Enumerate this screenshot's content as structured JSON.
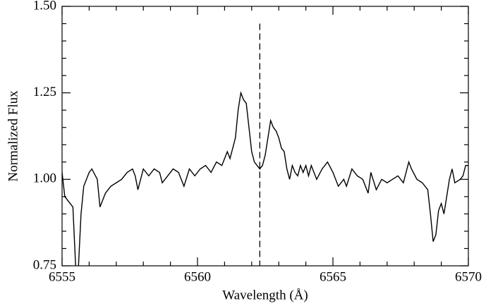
{
  "chart_data": {
    "type": "line",
    "x_label": "Wavelength (Å)",
    "y_label": "Normalized Flux",
    "xlim": [
      6555,
      6570
    ],
    "ylim": [
      0.75,
      1.5
    ],
    "xticks": [
      6555,
      6560,
      6565,
      6570
    ],
    "yticks": [
      {
        "value": 0.75,
        "label": "0.75"
      },
      {
        "value": 1.0,
        "label": "1.00"
      },
      {
        "value": 1.25,
        "label": "1.25"
      },
      {
        "value": 1.5,
        "label": "1.50"
      }
    ],
    "xminor": [
      6556,
      6557,
      6558,
      6559,
      6561,
      6562,
      6563,
      6564,
      6566,
      6567,
      6568,
      6569
    ],
    "yminor": [
      0.8,
      0.85,
      0.9,
      0.95,
      1.05,
      1.1,
      1.15,
      1.2,
      1.3,
      1.35,
      1.4,
      1.45
    ],
    "vline": {
      "x": 6562.3,
      "top": 1.45,
      "dash": true
    },
    "series": [
      {
        "color": "#000000",
        "x": [
          6555.0,
          6555.1,
          6555.3,
          6555.4,
          6555.5,
          6555.6,
          6555.7,
          6555.8,
          6556.0,
          6556.1,
          6556.3,
          6556.4,
          6556.6,
          6556.8,
          6557.0,
          6557.2,
          6557.4,
          6557.6,
          6557.7,
          6557.8,
          6558.0,
          6558.2,
          6558.4,
          6558.6,
          6558.7,
          6558.9,
          6559.1,
          6559.3,
          6559.5,
          6559.7,
          6559.9,
          6560.1,
          6560.3,
          6560.5,
          6560.7,
          6560.9,
          6561.1,
          6561.2,
          6561.4,
          6561.5,
          6561.6,
          6561.7,
          6561.8,
          6561.9,
          6562.0,
          6562.1,
          6562.3,
          6562.4,
          6562.5,
          6562.6,
          6562.7,
          6562.8,
          6562.9,
          6563.0,
          6563.1,
          6563.2,
          6563.3,
          6563.4,
          6563.5,
          6563.6,
          6563.7,
          6563.8,
          6563.9,
          6564.0,
          6564.1,
          6564.2,
          6564.4,
          6564.6,
          6564.8,
          6565.0,
          6565.2,
          6565.4,
          6565.5,
          6565.7,
          6565.9,
          6566.1,
          6566.3,
          6566.4,
          6566.6,
          6566.8,
          6567.0,
          6567.2,
          6567.4,
          6567.6,
          6567.8,
          6567.9,
          6568.1,
          6568.3,
          6568.5,
          6568.6,
          6568.7,
          6568.8,
          6568.9,
          6569.0,
          6569.1,
          6569.2,
          6569.3,
          6569.4,
          6569.5,
          6569.7,
          6569.8,
          6569.9,
          6570.0
        ],
        "values": [
          1.02,
          0.95,
          0.93,
          0.92,
          0.75,
          0.74,
          0.9,
          0.98,
          1.02,
          1.03,
          1.0,
          0.92,
          0.96,
          0.98,
          0.99,
          1.0,
          1.02,
          1.03,
          1.01,
          0.97,
          1.03,
          1.01,
          1.03,
          1.02,
          0.99,
          1.01,
          1.03,
          1.02,
          0.98,
          1.03,
          1.01,
          1.03,
          1.04,
          1.02,
          1.05,
          1.04,
          1.08,
          1.06,
          1.12,
          1.2,
          1.25,
          1.23,
          1.22,
          1.15,
          1.08,
          1.05,
          1.03,
          1.04,
          1.07,
          1.12,
          1.17,
          1.15,
          1.14,
          1.12,
          1.09,
          1.08,
          1.03,
          1.0,
          1.04,
          1.02,
          1.01,
          1.04,
          1.02,
          1.04,
          1.01,
          1.04,
          1.0,
          1.03,
          1.05,
          1.02,
          0.98,
          1.0,
          0.98,
          1.03,
          1.01,
          1.0,
          0.96,
          1.02,
          0.97,
          1.0,
          0.99,
          1.0,
          1.01,
          0.99,
          1.05,
          1.03,
          1.0,
          0.99,
          0.97,
          0.9,
          0.82,
          0.84,
          0.91,
          0.93,
          0.9,
          0.95,
          1.0,
          1.03,
          0.99,
          1.0,
          1.01,
          1.04,
          1.04
        ]
      }
    ]
  }
}
